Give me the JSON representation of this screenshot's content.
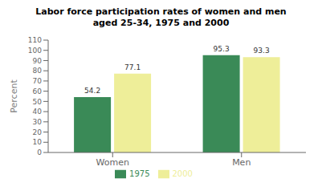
{
  "chart_data": {
    "type": "bar",
    "title": "Labor force participation rates of women and men\naged 25-34, 1975 and 2000",
    "categories": [
      "Women",
      "Men"
    ],
    "series": [
      {
        "name": "1975",
        "color": "#3a8a57",
        "values": [
          54.2,
          95.3
        ]
      },
      {
        "name": "2000",
        "color": "#eeee99",
        "values": [
          77.1,
          93.3
        ]
      }
    ],
    "ylabel": "Percent",
    "ylim": [
      0,
      110
    ],
    "yticks": [
      0,
      10,
      20,
      30,
      40,
      50,
      60,
      70,
      80,
      90,
      100,
      110
    ],
    "data_labels": true,
    "legend": "bottom",
    "grid": false
  }
}
